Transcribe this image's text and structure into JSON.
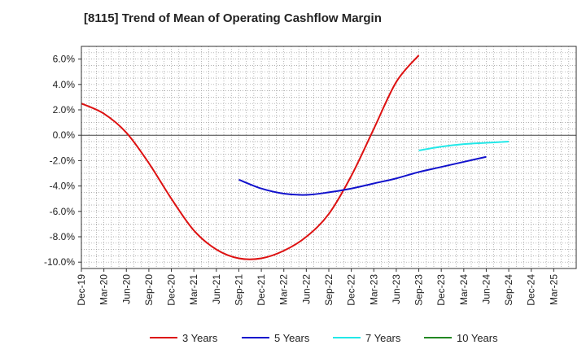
{
  "chart_data": {
    "type": "line",
    "title": "[8115]  Trend of Mean of Operating Cashflow Margin",
    "xlabel": "",
    "ylabel": "",
    "ylim": [
      -10.5,
      7.0
    ],
    "grid": true,
    "legend_position": "bottom",
    "x_tick_labels": [
      "Dec-19",
      "Mar-20",
      "Jun-20",
      "Sep-20",
      "Dec-20",
      "Mar-21",
      "Jun-21",
      "Sep-21",
      "Dec-21",
      "Mar-22",
      "Jun-22",
      "Sep-22",
      "Dec-22",
      "Mar-23",
      "Jun-23",
      "Sep-23",
      "Dec-23",
      "Mar-24",
      "Jun-24",
      "Sep-24",
      "Dec-24",
      "Mar-25"
    ],
    "y_ticks": [
      {
        "value": 6,
        "label": "6.0%"
      },
      {
        "value": 4,
        "label": "4.0%"
      },
      {
        "value": 2,
        "label": "2.0%"
      },
      {
        "value": 0,
        "label": "0.0%"
      },
      {
        "value": -2,
        "label": "-2.0%"
      },
      {
        "value": -4,
        "label": "-4.0%"
      },
      {
        "value": -6,
        "label": "-6.0%"
      },
      {
        "value": -8,
        "label": "-8.0%"
      },
      {
        "value": -10,
        "label": "-10.0%"
      }
    ],
    "series": [
      {
        "name": "3 Years",
        "color": "#dd1111",
        "start_index": 0,
        "values": [
          2.5,
          1.7,
          0.2,
          -2.2,
          -5.0,
          -7.5,
          -9.0,
          -9.7,
          -9.7,
          -9.1,
          -8.0,
          -6.2,
          -3.2,
          0.5,
          4.2,
          6.3
        ]
      },
      {
        "name": "5 Years",
        "color": "#1111cc",
        "start_index": 7,
        "values": [
          -3.5,
          -4.2,
          -4.6,
          -4.7,
          -4.5,
          -4.2,
          -3.8,
          -3.4,
          -2.9,
          -2.5,
          -2.1,
          -1.7
        ]
      },
      {
        "name": "7 Years",
        "color": "#22e8e8",
        "start_index": 15,
        "values": [
          -1.2,
          -0.9,
          -0.7,
          -0.6,
          -0.5
        ]
      },
      {
        "name": "10 Years",
        "color": "#228822",
        "start_index": 0,
        "values": []
      }
    ]
  }
}
